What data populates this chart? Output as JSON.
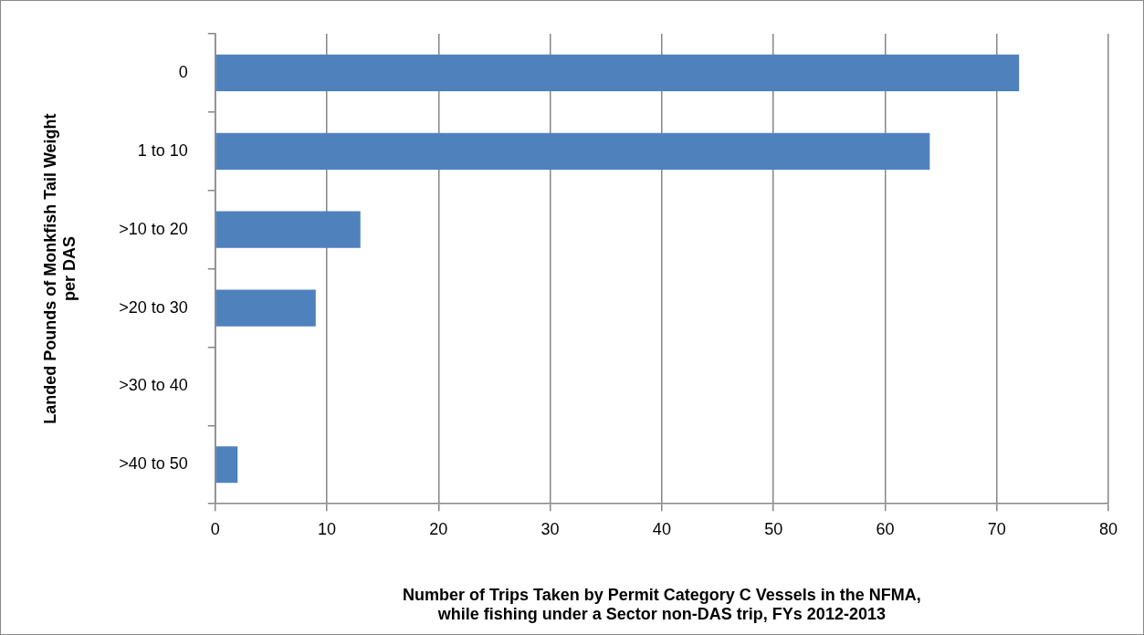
{
  "chart_data": {
    "type": "bar",
    "orientation": "horizontal",
    "xlabel": "Number of Trips Taken by Permit Category C Vessels in the NFMA,\nwhile fishing under a Sector non-DAS trip, FYs 2012-2013",
    "ylabel": "Landed Pounds of Monkfish Tail Weight\nper DAS",
    "categories": [
      "0",
      "1 to 10",
      ">10 to 20",
      ">20 to 30",
      ">30 to 40",
      ">40 to 50"
    ],
    "values": [
      72,
      64,
      13,
      9,
      0,
      2
    ],
    "color": "#4f81bd",
    "xlim": [
      0,
      80
    ],
    "xticks": [
      0,
      10,
      20,
      30,
      40,
      50,
      60,
      70,
      80
    ],
    "grid": "x",
    "legend": false
  }
}
